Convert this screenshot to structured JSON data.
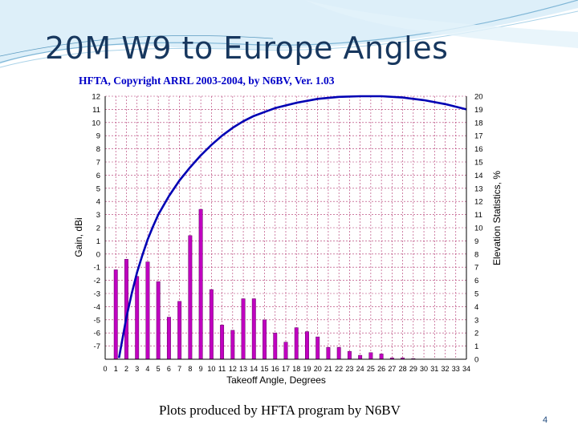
{
  "slide": {
    "title": "20M W9 to Europe Angles",
    "caption": "Plots produced by HFTA program by N6BV",
    "page_number": "4"
  },
  "colors": {
    "title": "#17375e",
    "gain_curve": "#0000b4",
    "bars_fill": "#c000c0",
    "bars_stroke": "#600060",
    "grid": "#b0306c",
    "plot_header": "#0000c8"
  },
  "chart_data": {
    "type": "bar",
    "title": "HFTA, Copyright ARRL 2003-2004, by N6BV, Ver. 1.03",
    "xlabel": "Takeoff Angle, Degrees",
    "ylabel": "Gain, dBi",
    "y2label": "Elevation Statistics, %",
    "xlim": [
      0,
      34
    ],
    "ylim": [
      -8,
      12
    ],
    "y2lim": [
      0,
      20
    ],
    "grid": true,
    "x_ticks": [
      0,
      1,
      2,
      3,
      4,
      5,
      6,
      7,
      8,
      9,
      10,
      11,
      12,
      13,
      14,
      15,
      16,
      17,
      18,
      19,
      20,
      21,
      22,
      23,
      24,
      25,
      26,
      27,
      28,
      29,
      30,
      31,
      32,
      33,
      34
    ],
    "y_ticks": [
      12,
      11,
      10,
      9,
      8,
      7,
      6,
      5,
      4,
      3,
      2,
      1,
      0,
      -1,
      -2,
      -3,
      -4,
      -5,
      -6,
      -7
    ],
    "y2_ticks": [
      20,
      19,
      18,
      17,
      16,
      15,
      14,
      13,
      12,
      11,
      10,
      9,
      8,
      7,
      6,
      5,
      4,
      3,
      2,
      1,
      0
    ],
    "series": [
      {
        "name": "Elevation Statistics",
        "kind": "bar",
        "axis": "right",
        "x": [
          1,
          2,
          3,
          4,
          5,
          6,
          7,
          8,
          9,
          10,
          11,
          12,
          13,
          14,
          15,
          16,
          17,
          18,
          19,
          20,
          21,
          22,
          23,
          24,
          25,
          26,
          27,
          28,
          29
        ],
        "values": [
          6.8,
          7.6,
          6.3,
          7.4,
          5.9,
          3.2,
          4.4,
          9.4,
          11.4,
          5.3,
          2.6,
          2.2,
          4.6,
          4.6,
          3.0,
          2.0,
          1.3,
          2.4,
          2.1,
          1.7,
          0.9,
          0.9,
          0.6,
          0.3,
          0.5,
          0.4,
          0.1,
          0.1,
          0.05
        ]
      },
      {
        "name": "Gain",
        "kind": "line",
        "axis": "left",
        "x": [
          1.3,
          1.5,
          2,
          2.5,
          3,
          3.5,
          4,
          4.5,
          5,
          6,
          7,
          8,
          9,
          10,
          11,
          12,
          13,
          14,
          15,
          16,
          18,
          20,
          22,
          24,
          26,
          28,
          30,
          32,
          34
        ],
        "values": [
          -7.9,
          -7.0,
          -4.8,
          -3.0,
          -1.4,
          -0.1,
          1.1,
          2.1,
          3.0,
          4.4,
          5.6,
          6.6,
          7.5,
          8.3,
          9.0,
          9.6,
          10.1,
          10.5,
          10.8,
          11.1,
          11.5,
          11.8,
          11.95,
          12.0,
          12.0,
          11.9,
          11.7,
          11.4,
          11.0
        ]
      }
    ]
  }
}
